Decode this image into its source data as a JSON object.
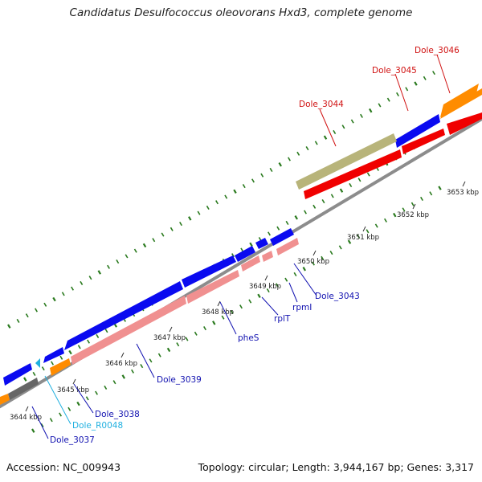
{
  "title": "Candidatus Desulfococcus oleovorans Hxd3, complete genome",
  "footer": {
    "accession": "Accession: NC_009943",
    "summary": "Topology: circular; Length: 3,944,167 bp; Genes: 3,317"
  },
  "colors": {
    "cds_blue": "#0a0af0",
    "cds_orange": "#ff8c00",
    "cds_gray": "#666666",
    "cds_olive": "#b8b47a",
    "cds_red": "#f00000",
    "cds_pink": "#f09090",
    "backbone": "#8c8c8c",
    "gc_dash": "#2a7a1e",
    "label_blue": "#1010b0",
    "label_red": "#d01010",
    "label_cyan": "#20b0e0"
  },
  "ticks": [
    "3644 kbp",
    "3645 kbp",
    "3646 kbp",
    "3647 kbp",
    "3648 kbp",
    "3649 kbp",
    "3650 kbp",
    "3651 kbp",
    "3652 kbp",
    "3653 kbp"
  ],
  "gene_labels": {
    "dole_3046": "Dole_3046",
    "dole_3045": "Dole_3045",
    "dole_3044": "Dole_3044",
    "dole_3043": "Dole_3043",
    "rpmi": "rpmI",
    "rplt": "rplT",
    "phes": "pheS",
    "dole_3039": "Dole_3039",
    "dole_3038": "Dole_3038",
    "dole_r0048": "Dole_R0048",
    "dole_3037": "Dole_3037"
  }
}
